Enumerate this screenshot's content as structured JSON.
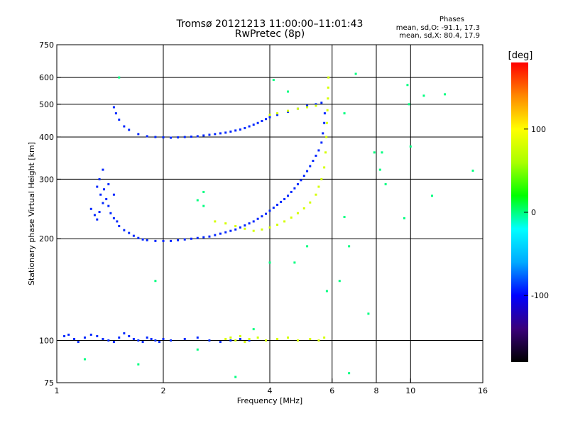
{
  "header": {
    "title_line1": "Tromsø 20121213 11:00:00–11:01:43",
    "title_line2": "RwPretec (8p)",
    "stats_title": "Phases",
    "stats_o": "mean, sd,O: -91.1, 17.3",
    "stats_x": "mean, sd,X:  80.4, 17.9"
  },
  "chart_data": {
    "type": "scatter",
    "xlabel": "Frequency [MHz]",
    "ylabel": "Stationary phase Virtual Height [km]",
    "x_scale": "log",
    "y_scale": "log",
    "xlim": [
      1,
      16
    ],
    "ylim": [
      75,
      750
    ],
    "x_ticks": [
      1,
      2,
      4,
      6,
      8,
      10,
      16
    ],
    "x_tick_labels": [
      "1",
      "2",
      "4",
      "6",
      "8",
      "10",
      "16"
    ],
    "x_gridlines": [
      2,
      4,
      6,
      8,
      10
    ],
    "y_ticks": [
      75,
      100,
      200,
      300,
      400,
      500,
      600,
      750
    ],
    "y_tick_labels": [
      "75",
      "100",
      "200",
      "300",
      "400",
      "500",
      "600",
      "750"
    ],
    "y_gridlines": [
      100,
      200,
      300,
      400,
      500,
      600
    ],
    "grid": true,
    "colorbar": {
      "label": "[deg]",
      "range": [
        -180,
        180
      ],
      "ticks": [
        100,
        0,
        -100
      ],
      "tick_labels": [
        "100",
        "0",
        "-100"
      ],
      "colors": [
        "#000000",
        "#3a007a",
        "#0000ff",
        "#00aaff",
        "#00ffff",
        "#00ff00",
        "#aaff00",
        "#ffff00",
        "#ff8800",
        "#ff0000"
      ]
    },
    "series": [
      {
        "name": "O",
        "phase": -91,
        "points": [
          [
            1.05,
            103
          ],
          [
            1.08,
            104
          ],
          [
            1.12,
            101
          ],
          [
            1.15,
            99
          ],
          [
            1.2,
            102
          ],
          [
            1.25,
            104
          ],
          [
            1.3,
            103
          ],
          [
            1.35,
            101
          ],
          [
            1.4,
            100
          ],
          [
            1.45,
            99
          ],
          [
            1.5,
            102
          ],
          [
            1.55,
            105
          ],
          [
            1.6,
            103
          ],
          [
            1.65,
            101
          ],
          [
            1.7,
            100
          ],
          [
            1.75,
            99
          ],
          [
            1.8,
            102
          ],
          [
            1.85,
            101
          ],
          [
            1.9,
            100
          ],
          [
            1.95,
            99
          ],
          [
            2.0,
            101
          ],
          [
            2.1,
            100
          ],
          [
            2.3,
            101
          ],
          [
            2.5,
            102
          ],
          [
            2.7,
            100
          ],
          [
            2.9,
            99
          ],
          [
            3.1,
            100
          ],
          [
            3.3,
            101
          ],
          [
            3.5,
            100
          ],
          [
            1.25,
            245
          ],
          [
            1.28,
            235
          ],
          [
            1.3,
            228
          ],
          [
            1.32,
            240
          ],
          [
            1.35,
            255
          ],
          [
            1.38,
            262
          ],
          [
            1.4,
            250
          ],
          [
            1.42,
            238
          ],
          [
            1.45,
            230
          ],
          [
            1.48,
            225
          ],
          [
            1.5,
            218
          ],
          [
            1.55,
            212
          ],
          [
            1.6,
            208
          ],
          [
            1.65,
            204
          ],
          [
            1.7,
            201
          ],
          [
            1.75,
            199
          ],
          [
            1.8,
            198
          ],
          [
            1.9,
            197
          ],
          [
            2.0,
            197
          ],
          [
            2.1,
            197
          ],
          [
            2.2,
            198
          ],
          [
            2.3,
            199
          ],
          [
            2.4,
            200
          ],
          [
            2.5,
            201
          ],
          [
            2.6,
            202
          ],
          [
            2.7,
            203
          ],
          [
            2.8,
            205
          ],
          [
            2.9,
            207
          ],
          [
            3.0,
            209
          ],
          [
            3.1,
            211
          ],
          [
            3.2,
            213
          ],
          [
            3.3,
            216
          ],
          [
            3.4,
            219
          ],
          [
            3.5,
            222
          ],
          [
            3.6,
            225
          ],
          [
            3.7,
            229
          ],
          [
            3.8,
            233
          ],
          [
            3.9,
            237
          ],
          [
            4.0,
            242
          ],
          [
            4.1,
            247
          ],
          [
            4.2,
            252
          ],
          [
            4.3,
            257
          ],
          [
            4.4,
            262
          ],
          [
            4.5,
            268
          ],
          [
            4.6,
            275
          ],
          [
            4.7,
            282
          ],
          [
            4.8,
            290
          ],
          [
            4.9,
            298
          ],
          [
            5.0,
            307
          ],
          [
            5.1,
            317
          ],
          [
            5.2,
            328
          ],
          [
            5.3,
            340
          ],
          [
            5.4,
            352
          ],
          [
            5.5,
            365
          ],
          [
            5.6,
            385
          ],
          [
            5.65,
            410
          ],
          [
            5.7,
            440
          ],
          [
            5.72,
            470
          ],
          [
            1.3,
            285
          ],
          [
            1.32,
            300
          ],
          [
            1.35,
            320
          ],
          [
            1.33,
            270
          ],
          [
            1.36,
            280
          ],
          [
            1.4,
            290
          ],
          [
            1.45,
            270
          ],
          [
            1.45,
            490
          ],
          [
            1.47,
            470
          ],
          [
            1.5,
            450
          ],
          [
            1.55,
            430
          ],
          [
            1.6,
            420
          ],
          [
            1.7,
            408
          ],
          [
            1.8,
            402
          ],
          [
            1.9,
            400
          ],
          [
            2.0,
            399
          ],
          [
            2.1,
            398
          ],
          [
            2.2,
            399
          ],
          [
            2.3,
            400
          ],
          [
            2.4,
            401
          ],
          [
            2.5,
            402
          ],
          [
            2.6,
            404
          ],
          [
            2.7,
            406
          ],
          [
            2.8,
            408
          ],
          [
            2.9,
            410
          ],
          [
            3.0,
            412
          ],
          [
            3.1,
            415
          ],
          [
            3.2,
            418
          ],
          [
            3.3,
            421
          ],
          [
            3.4,
            425
          ],
          [
            3.5,
            430
          ],
          [
            3.6,
            435
          ],
          [
            3.7,
            440
          ],
          [
            3.8,
            446
          ],
          [
            3.9,
            452
          ],
          [
            4.0,
            458
          ],
          [
            4.2,
            465
          ],
          [
            4.5,
            475
          ],
          [
            4.8,
            485
          ],
          [
            5.1,
            495
          ],
          [
            5.4,
            500
          ],
          [
            5.6,
            505
          ]
        ]
      },
      {
        "name": "X",
        "phase": 80,
        "points": [
          [
            3.0,
            101
          ],
          [
            3.1,
            102
          ],
          [
            3.2,
            100
          ],
          [
            3.3,
            103
          ],
          [
            3.4,
            99
          ],
          [
            3.5,
            101
          ],
          [
            3.7,
            102
          ],
          [
            3.9,
            100
          ],
          [
            4.2,
            101
          ],
          [
            4.5,
            102
          ],
          [
            4.8,
            100
          ],
          [
            5.2,
            101
          ],
          [
            5.5,
            100
          ],
          [
            5.7,
            102
          ],
          [
            2.8,
            225
          ],
          [
            3.0,
            222
          ],
          [
            3.2,
            218
          ],
          [
            3.4,
            214
          ],
          [
            3.6,
            211
          ],
          [
            3.8,
            213
          ],
          [
            4.0,
            216
          ],
          [
            4.2,
            220
          ],
          [
            4.4,
            225
          ],
          [
            4.6,
            231
          ],
          [
            4.8,
            238
          ],
          [
            5.0,
            246
          ],
          [
            5.2,
            256
          ],
          [
            5.4,
            270
          ],
          [
            5.5,
            285
          ],
          [
            5.6,
            300
          ],
          [
            5.7,
            325
          ],
          [
            5.75,
            360
          ],
          [
            5.78,
            400
          ],
          [
            5.8,
            440
          ],
          [
            5.82,
            480
          ],
          [
            5.84,
            520
          ],
          [
            5.85,
            560
          ],
          [
            5.86,
            600
          ],
          [
            4.0,
            465
          ],
          [
            4.2,
            470
          ],
          [
            4.5,
            478
          ],
          [
            4.8,
            485
          ],
          [
            5.1,
            490
          ],
          [
            5.4,
            495
          ]
        ]
      },
      {
        "name": "scatter",
        "phase": 0,
        "points": [
          [
            1.5,
            600
          ],
          [
            4.1,
            590
          ],
          [
            4.5,
            545
          ],
          [
            6.5,
            470
          ],
          [
            7.0,
            615
          ],
          [
            8.2,
            320
          ],
          [
            8.3,
            360
          ],
          [
            8.5,
            290
          ],
          [
            9.8,
            570
          ],
          [
            9.9,
            500
          ],
          [
            10.0,
            375
          ],
          [
            10.9,
            530
          ],
          [
            12.5,
            535
          ],
          [
            15.0,
            318
          ],
          [
            11.5,
            268
          ],
          [
            9.6,
            230
          ],
          [
            6.5,
            232
          ],
          [
            6.7,
            190
          ],
          [
            7.9,
            360
          ],
          [
            4.0,
            170
          ],
          [
            5.1,
            190
          ],
          [
            5.8,
            140
          ],
          [
            6.7,
            80
          ],
          [
            3.2,
            78
          ],
          [
            1.2,
            88
          ],
          [
            1.7,
            85
          ],
          [
            2.5,
            94
          ],
          [
            2.6,
            275
          ],
          [
            6.3,
            150
          ],
          [
            7.6,
            120
          ],
          [
            3.6,
            108
          ],
          [
            2.6,
            250
          ],
          [
            2.5,
            260
          ],
          [
            4.7,
            170
          ],
          [
            1.9,
            150
          ]
        ]
      }
    ]
  }
}
